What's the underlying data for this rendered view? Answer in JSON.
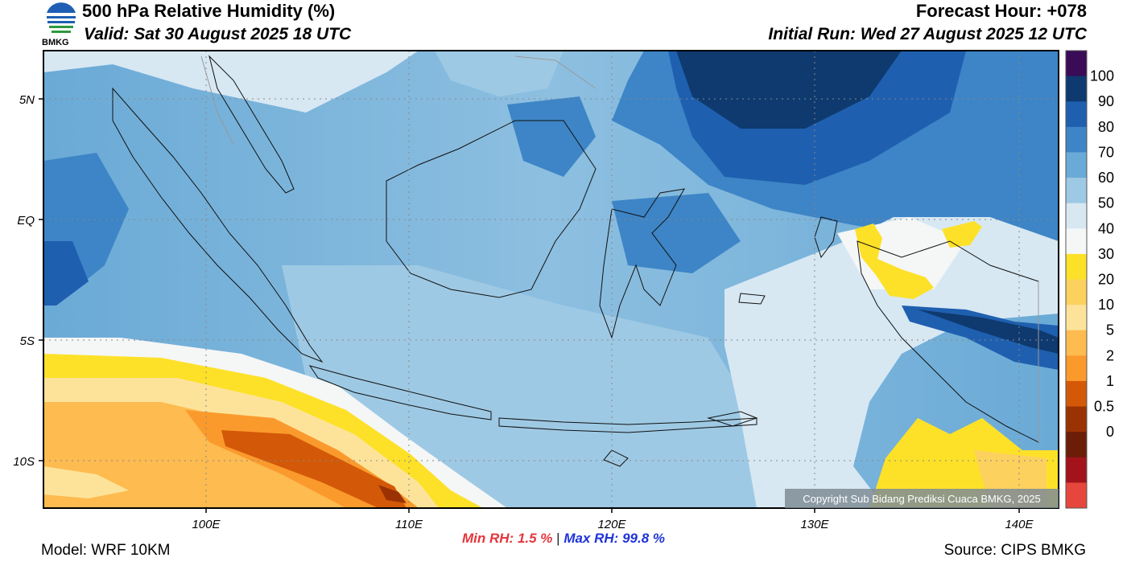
{
  "header": {
    "title": "500 hPa Relative Humidity (%)",
    "valid": "Valid: Sat 30 August 2025 18 UTC",
    "forecast_hour": "Forecast Hour: +078",
    "initial_run": "Initial Run: Wed 27 August 2025 12 UTC",
    "logo_text": "BMKG"
  },
  "map": {
    "lat_labels": [
      "5N",
      "EQ",
      "5S",
      "10S"
    ],
    "lon_labels": [
      "100E",
      "110E",
      "120E",
      "130E",
      "140E"
    ],
    "copyright": "Copyright Sub Bidang Prediksi Cuaca BMKG, 2025",
    "colorbar": {
      "labels": [
        "100",
        "90",
        "80",
        "70",
        "60",
        "50",
        "40",
        "30",
        "20",
        "10",
        "5",
        "2",
        "1",
        "0.5",
        "0"
      ],
      "colors_top_to_bottom": [
        "#3a0b57",
        "#0e3a6f",
        "#1f5faf",
        "#3d85c6",
        "#6aaad6",
        "#9ec9e4",
        "#d7e8f3",
        "#f5f6f6",
        "#fde128",
        "#fdd15e",
        "#fde39a",
        "#fdbb50",
        "#fb9a2c",
        "#d35908",
        "#9a3203",
        "#6c1d08",
        "#a2141a",
        "#e6463b"
      ]
    }
  },
  "footer": {
    "min_label": "Min RH:",
    "min_value": "1.5 %",
    "separator": "|",
    "max_label": "Max RH:",
    "max_value": "99.8 %",
    "model": "Model: WRF 10KM",
    "source": "Source: CIPS BMKG"
  }
}
